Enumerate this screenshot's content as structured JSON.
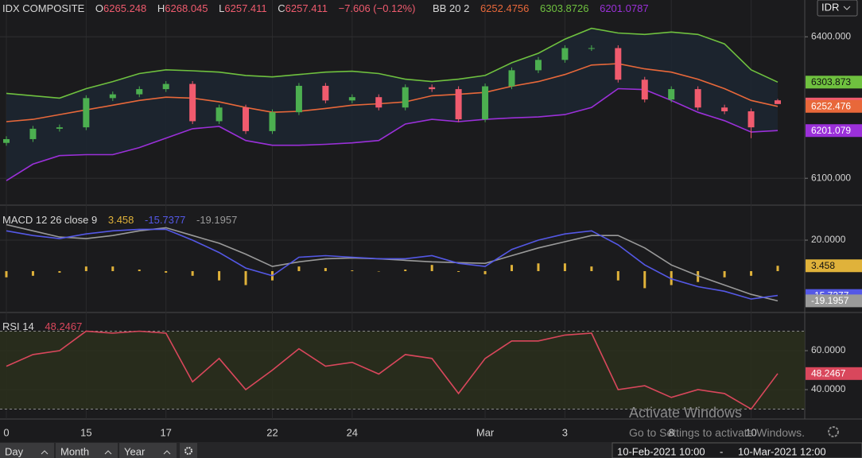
{
  "chart_data": [
    {
      "type": "candlestick",
      "title": "IDX COMPOSITE",
      "categories": [
        "0",
        null,
        null,
        "15",
        null,
        null,
        "17",
        null,
        null,
        null,
        "22",
        null,
        null,
        "24",
        null,
        null,
        null,
        null,
        "Mar",
        null,
        null,
        "3",
        null,
        null,
        null,
        "8",
        null,
        null,
        "10",
        null
      ],
      "open": [
        6175,
        6183,
        6205,
        6208,
        6270,
        6278,
        6289,
        6300,
        6221,
        6250,
        6200,
        6240,
        6296,
        6265,
        6272,
        6250,
        6293,
        6289,
        6225,
        6295,
        6329,
        6351,
        6376,
        6376,
        6309,
        6267,
        6289,
        6250,
        6242,
        6265.248
      ],
      "high": [
        6189,
        6211,
        6214,
        6276,
        6284,
        6295,
        6306,
        6306,
        6256,
        6256,
        6246,
        6302,
        6302,
        6278,
        6278,
        6299,
        6299,
        6295,
        6301,
        6335,
        6357,
        6382,
        6382,
        6382,
        6315,
        6295,
        6295,
        6256,
        6248,
        6268.045
      ],
      "low": [
        6169,
        6177,
        6199,
        6202,
        6264,
        6272,
        6283,
        6215,
        6215,
        6194,
        6194,
        6234,
        6259,
        6259,
        6244,
        6244,
        6283,
        6219,
        6219,
        6289,
        6323,
        6345,
        6370,
        6303,
        6261,
        6261,
        6244,
        6236,
        6185,
        6257.411
      ],
      "close": [
        6183,
        6205,
        6208,
        6270,
        6278,
        6289,
        6300,
        6221,
        6250,
        6200,
        6240,
        6296,
        6265,
        6272,
        6250,
        6293,
        6289,
        6225,
        6295,
        6329,
        6351,
        6376,
        6376,
        6309,
        6267,
        6289,
        6250,
        6242,
        6208,
        6257.411
      ],
      "ohlc_prefixes": [
        "O",
        "H",
        "L",
        "C"
      ],
      "change_label": "−7.606 (−0.12%)",
      "up_color": "#4caf50",
      "down_color": "#f05b6e",
      "indicator": "BB 20 2",
      "series": [
        {
          "color": "#e8683a",
          "last_label": "6252.476",
          "values": [
            6220,
            6225,
            6235,
            6245,
            6255,
            6265,
            6272,
            6270,
            6262,
            6250,
            6240,
            6242,
            6248,
            6255,
            6258,
            6262,
            6275,
            6278,
            6282,
            6295,
            6305,
            6320,
            6340,
            6343,
            6332,
            6325,
            6310,
            6290,
            6265,
            6252.4756
          ]
        },
        {
          "color": "#6fc13f",
          "last_label": "6303.873",
          "values": [
            6280,
            6275,
            6270,
            6290,
            6305,
            6322,
            6330,
            6328,
            6325,
            6318,
            6315,
            6320,
            6325,
            6327,
            6322,
            6310,
            6305,
            6310,
            6318,
            6345,
            6365,
            6395,
            6418,
            6408,
            6405,
            6410,
            6405,
            6385,
            6330,
            6303.8726
          ]
        },
        {
          "color": "#9b30d9",
          "last_label": "6201.079",
          "values": [
            6095,
            6130,
            6148,
            6150,
            6150,
            6165,
            6185,
            6205,
            6210,
            6180,
            6170,
            6170,
            6172,
            6175,
            6180,
            6215,
            6225,
            6220,
            6225,
            6228,
            6230,
            6235,
            6250,
            6290,
            6288,
            6265,
            6240,
            6222,
            6198,
            6201.0787
          ]
        }
      ],
      "ylim": [
        6043,
        6478
      ],
      "yticks": [
        {
          "value": 6400,
          "label": "6400.000"
        },
        {
          "value": 6100,
          "label": "6100.000"
        }
      ],
      "grid": true
    },
    {
      "type": "macd",
      "title": "MACD 12 26 close 9",
      "series": [
        {
          "color": "#e0b23a",
          "values": [
            -4,
            -3,
            -1,
            3,
            3,
            1,
            -1,
            -3,
            -6,
            -9,
            -6,
            3,
            2,
            0.5,
            0,
            1,
            4,
            -0.5,
            -2,
            4,
            5,
            5,
            3,
            -6,
            -11,
            -9,
            -7,
            -4,
            -3,
            3.458
          ]
        },
        {
          "color": "#5458e6",
          "values": [
            26,
            23,
            21,
            24,
            26,
            27,
            27,
            20,
            12,
            2,
            -3,
            9,
            10,
            9,
            8,
            8,
            10,
            5,
            3,
            14,
            20,
            24,
            26,
            17,
            4,
            -5,
            -10,
            -13,
            -18,
            -15.7377
          ]
        },
        {
          "color": "#9a9a9a",
          "values": [
            30,
            26,
            22,
            21,
            23,
            26,
            28,
            23,
            18,
            11,
            3,
            6,
            8,
            8.5,
            8,
            7,
            6,
            5.5,
            5,
            10,
            15,
            19,
            23,
            23,
            15,
            4,
            -3,
            -9,
            -15,
            -19.1957
          ]
        }
      ],
      "ylim": [
        -26.7,
        42.6
      ],
      "yticks": [
        {
          "value": 20,
          "label": "20.0000"
        }
      ],
      "grid": true
    },
    {
      "type": "line",
      "title": "RSI 14",
      "series": [
        {
          "color": "#d9475c",
          "values": [
            52,
            58,
            60,
            70,
            69,
            70,
            69,
            44,
            56,
            40,
            50,
            61,
            52,
            54,
            48,
            58,
            56,
            38,
            56,
            65,
            65,
            68,
            69,
            40,
            42,
            36,
            40,
            38,
            30,
            48.2467
          ]
        }
      ],
      "bands": [
        30,
        70
      ],
      "ylim": [
        24.9,
        79.6
      ],
      "yticks": [
        {
          "value": 60,
          "label": "60.0000"
        },
        {
          "value": 40,
          "label": "40.0000"
        }
      ],
      "grid": true
    }
  ],
  "ui": {
    "currency": "IDR",
    "buttons": [
      "Day",
      "Month",
      "Year"
    ],
    "range_start": "10-Feb-2021 10:00",
    "range_sep": "-",
    "range_end": "10-Mar-2021 12:00",
    "watermark_title": "Activate Windows",
    "watermark_text": "Go to Settings to activate Windows."
  }
}
